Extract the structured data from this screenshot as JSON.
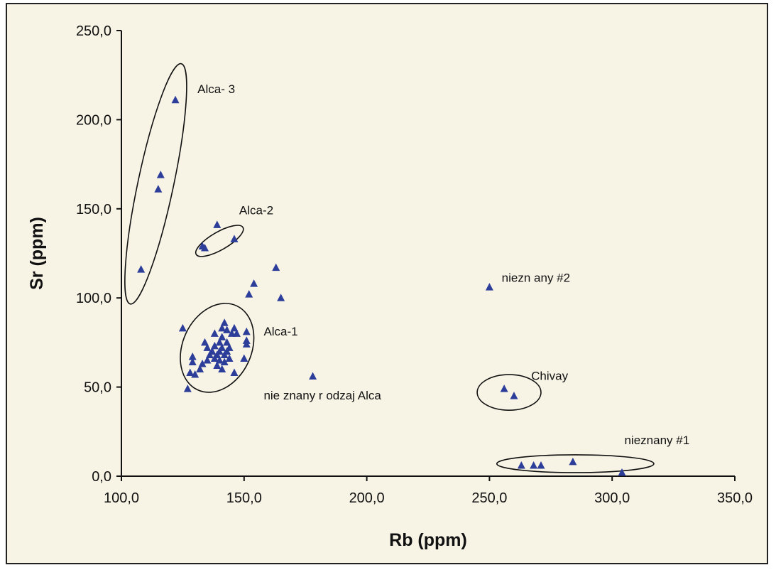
{
  "chart_data": {
    "type": "scatter",
    "xlabel": "Rb (ppm)",
    "ylabel": "Sr (ppm)",
    "xlim": [
      100,
      350
    ],
    "ylim": [
      0,
      250
    ],
    "xticks": [
      100,
      150,
      200,
      250,
      300,
      350
    ],
    "yticks": [
      0,
      50,
      100,
      150,
      200,
      250
    ],
    "xtick_labels": [
      "100,0",
      "150,0",
      "200,0",
      "250,0",
      "300,0",
      "350,0"
    ],
    "ytick_labels": [
      "0,0",
      "50,0",
      "100,0",
      "150,0",
      "200,0",
      "250,0"
    ],
    "grid": false,
    "marker": "triangle",
    "marker_color": "#2d3d9a",
    "points": [
      [
        122,
        211
      ],
      [
        116,
        169
      ],
      [
        115,
        161
      ],
      [
        108,
        116
      ],
      [
        139,
        141
      ],
      [
        133,
        129
      ],
      [
        134,
        128
      ],
      [
        146,
        133
      ],
      [
        163,
        117
      ],
      [
        154,
        108
      ],
      [
        152,
        102
      ],
      [
        165,
        100
      ],
      [
        250,
        106
      ],
      [
        178,
        56
      ],
      [
        256,
        49
      ],
      [
        260,
        45
      ],
      [
        263,
        6
      ],
      [
        268,
        6
      ],
      [
        271,
        6
      ],
      [
        284,
        8
      ],
      [
        304,
        2
      ],
      [
        125,
        83
      ],
      [
        127,
        49
      ],
      [
        128,
        58
      ],
      [
        129,
        64
      ],
      [
        129,
        67
      ],
      [
        130,
        57
      ],
      [
        132,
        60
      ],
      [
        133,
        63
      ],
      [
        134,
        75
      ],
      [
        135,
        72
      ],
      [
        135,
        65
      ],
      [
        136,
        68
      ],
      [
        137,
        70
      ],
      [
        138,
        66
      ],
      [
        138,
        73
      ],
      [
        138,
        80
      ],
      [
        139,
        68
      ],
      [
        139,
        62
      ],
      [
        140,
        75
      ],
      [
        140,
        70
      ],
      [
        140,
        65
      ],
      [
        141,
        78
      ],
      [
        141,
        72
      ],
      [
        141,
        83
      ],
      [
        141,
        60
      ],
      [
        142,
        86
      ],
      [
        142,
        68
      ],
      [
        142,
        64
      ],
      [
        143,
        75
      ],
      [
        143,
        70
      ],
      [
        143,
        82
      ],
      [
        144,
        72
      ],
      [
        144,
        66
      ],
      [
        145,
        80
      ],
      [
        146,
        58
      ],
      [
        146,
        83
      ],
      [
        147,
        80
      ],
      [
        150,
        66
      ],
      [
        151,
        81
      ],
      [
        151,
        76
      ],
      [
        151,
        74
      ]
    ],
    "groups": [
      {
        "label": "Alca- 3",
        "ellipse": {
          "cx": 114,
          "cy": 164,
          "rx": 50,
          "ry": 10,
          "rotation": -78
        }
      },
      {
        "label": "Alca-2",
        "ellipse": {
          "cx": 140,
          "cy": 132,
          "rx": 11,
          "ry": 5,
          "rotation": -30
        }
      },
      {
        "label": "Alca-1",
        "ellipse": {
          "cx": 139,
          "cy": 72,
          "rx": 14,
          "ry": 26,
          "rotation": 25
        }
      },
      {
        "label": "Chivay",
        "ellipse": {
          "cx": 258,
          "cy": 47,
          "rx": 13,
          "ry": 10,
          "rotation": 0
        }
      },
      {
        "label": "nieznany #1",
        "ellipse": {
          "cx": 285,
          "cy": 7,
          "rx": 32,
          "ry": 5,
          "rotation": 0
        }
      }
    ],
    "annotations": [
      {
        "text": "Alca- 3",
        "x": 131,
        "y": 215
      },
      {
        "text": "Alca-2",
        "x": 148,
        "y": 147
      },
      {
        "text": "Alca-1",
        "x": 158,
        "y": 79
      },
      {
        "text": "niezn any #2",
        "x": 255,
        "y": 109
      },
      {
        "text": "Chivay",
        "x": 267,
        "y": 54
      },
      {
        "text": "nie znany r odzaj Alca",
        "x": 158,
        "y": 43
      },
      {
        "text": "nieznany #1",
        "x": 305,
        "y": 18
      }
    ]
  }
}
